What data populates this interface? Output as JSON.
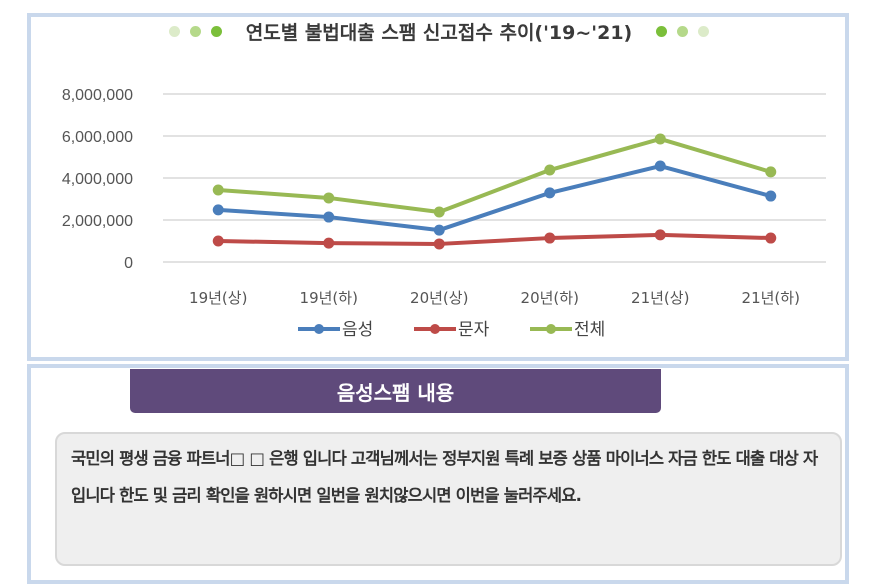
{
  "chart_data": {
    "type": "line",
    "title": "연도별 불법대출 스팸 신고접수 추이('19~'21)",
    "categories": [
      "19년(상)",
      "19년(하)",
      "20년(상)",
      "20년(하)",
      "21년(상)",
      "21년(하)"
    ],
    "ylim": [
      0,
      8000000
    ],
    "yticks": [
      "0",
      "2,000,000",
      "4,000,000",
      "6,000,000",
      "8,000,000"
    ],
    "ytick_values": [
      0,
      2000000,
      4000000,
      6000000,
      8000000
    ],
    "grid": true,
    "legend_position": "bottom",
    "series": [
      {
        "name": "음성",
        "color": "#4a7ebb",
        "values": [
          2480000,
          2140000,
          1520000,
          3290000,
          4570000,
          3140000
        ]
      },
      {
        "name": "문자",
        "color": "#be4b48",
        "values": [
          1000000,
          900000,
          860000,
          1140000,
          1290000,
          1140000
        ]
      },
      {
        "name": "전체",
        "color": "#98b954",
        "values": [
          3430000,
          3050000,
          2380000,
          4380000,
          5860000,
          4290000
        ]
      }
    ]
  },
  "title_dots_colors": [
    "#dcebc9",
    "#b5d98a",
    "#7bbf3a"
  ],
  "section": {
    "banner": "음성스팸 내용",
    "content": "국민의 평생 금융 파트너□ □ 은행 입니다 고객님께서는 정부지원 특례 보증 상품 마이너스 자금 한도 대출 대상 자입니다 한도 및 금리 확인을 원하시면 일번을 원치않으시면 이번을 눌러주세요."
  }
}
